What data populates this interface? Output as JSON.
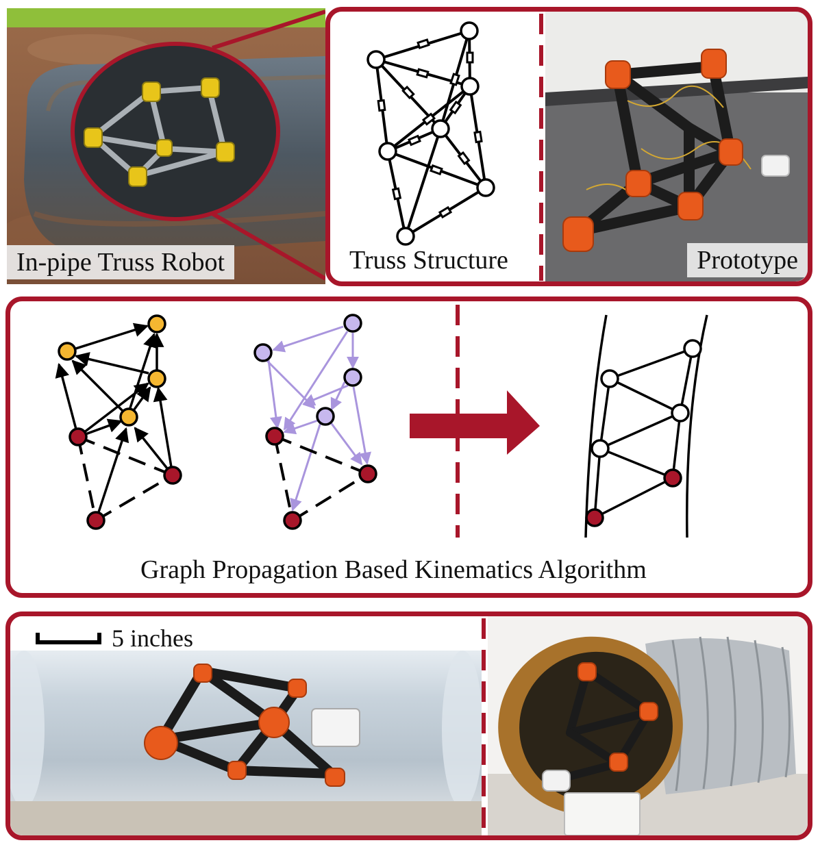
{
  "panel_top": {
    "in_pipe_label": "In-pipe Truss Robot",
    "truss_label": "Truss Structure",
    "prototype_label": "Prototype"
  },
  "panel_middle": {
    "caption": "Graph Propagation Based Kinematics Algorithm"
  },
  "panel_bottom": {
    "scale_label": "5 inches"
  },
  "colors": {
    "frame": "#A8162A",
    "node_yellow": "#F5B731",
    "node_red": "#A8162A",
    "node_purple": "#C7B8EE",
    "edge_purple": "#A995DD",
    "robot_orange": "#E85A1C"
  },
  "icons": [
    "arrow-right-icon"
  ]
}
